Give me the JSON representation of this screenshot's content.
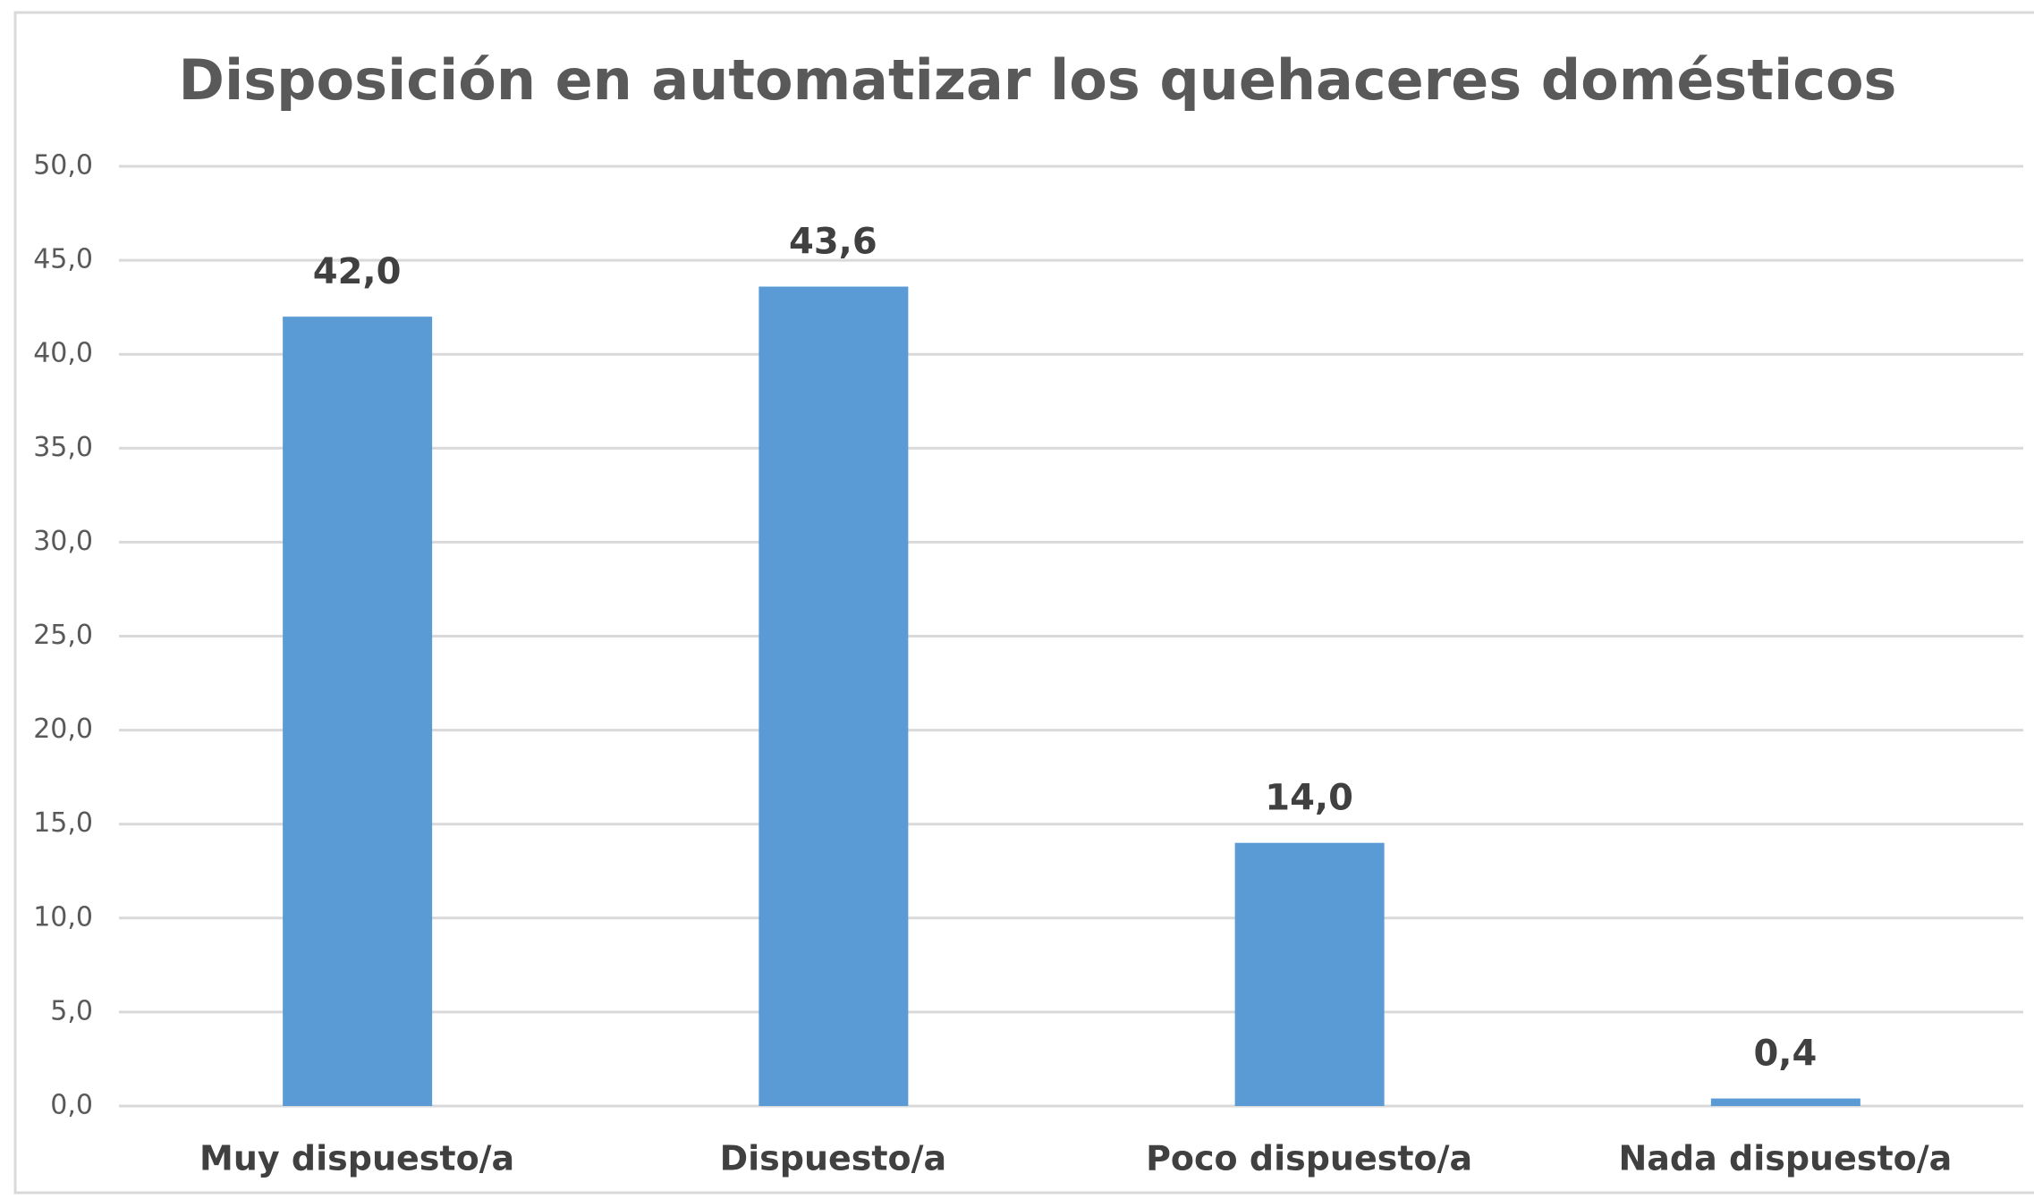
{
  "chart_data": {
    "type": "bar",
    "title": "Disposición en automatizar los quehaceres domésticos",
    "categories": [
      "Muy dispuesto/a",
      "Dispuesto/a",
      "Poco dispuesto/a",
      "Nada dispuesto/a"
    ],
    "values": [
      42.0,
      43.6,
      14.0,
      0.4
    ],
    "value_labels": [
      "42,0",
      "43,6",
      "14,0",
      "0,4"
    ],
    "color": "#5b9bd5",
    "ylim": [
      0,
      50
    ],
    "yticks": [
      {
        "value": 0,
        "label": "0,0"
      },
      {
        "value": 5,
        "label": "5,0"
      },
      {
        "value": 10,
        "label": "10,0"
      },
      {
        "value": 15,
        "label": "15,0"
      },
      {
        "value": 20,
        "label": "20,0"
      },
      {
        "value": 25,
        "label": "25,0"
      },
      {
        "value": 30,
        "label": "30,0"
      },
      {
        "value": 35,
        "label": "35,0"
      },
      {
        "value": 40,
        "label": "40,0"
      },
      {
        "value": 45,
        "label": "45,0"
      },
      {
        "value": 50,
        "label": "50,0"
      }
    ],
    "grid": true
  }
}
